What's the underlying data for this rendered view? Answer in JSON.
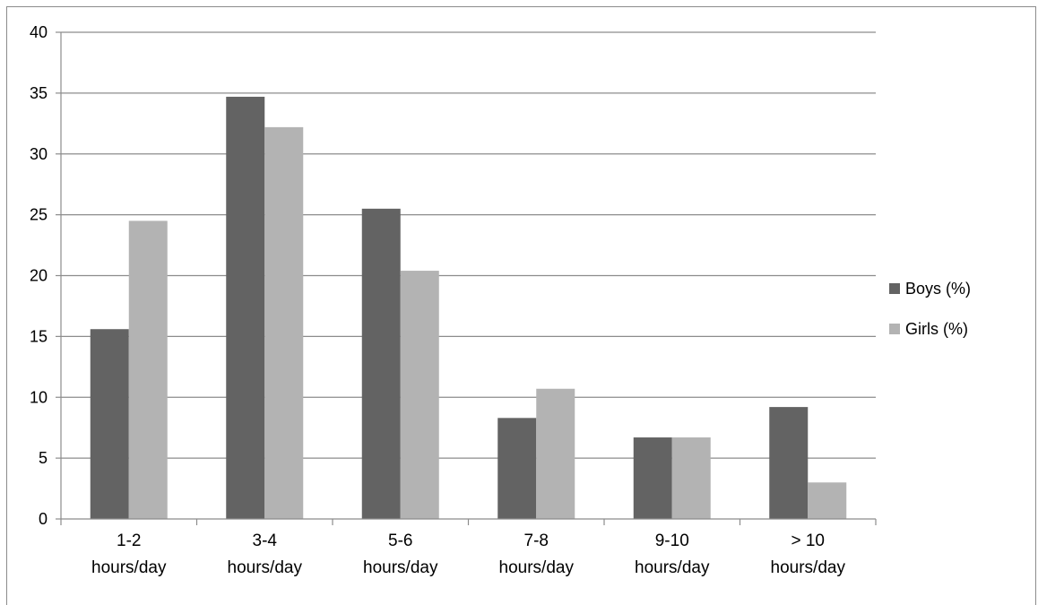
{
  "chart_data": {
    "type": "bar",
    "categories": [
      [
        "1-2",
        "hours/day"
      ],
      [
        "3-4",
        "hours/day"
      ],
      [
        "5-6",
        "hours/day"
      ],
      [
        "7-8",
        "hours/day"
      ],
      [
        "9-10",
        "hours/day"
      ],
      [
        "> 10",
        "hours/day"
      ]
    ],
    "series": [
      {
        "name": "Boys (%)",
        "color": "#636363",
        "values": [
          15.6,
          34.7,
          25.5,
          8.3,
          6.7,
          9.2
        ]
      },
      {
        "name": "Girls (%)",
        "color": "#b3b3b3",
        "values": [
          24.5,
          32.2,
          20.4,
          10.7,
          6.7,
          3.0
        ]
      }
    ],
    "ylim": [
      0,
      40
    ],
    "yticks": [
      "0",
      "5",
      "10",
      "15",
      "20",
      "25",
      "30",
      "35",
      "40"
    ],
    "grid": true,
    "legend": "right",
    "title": "",
    "xlabel": "",
    "ylabel": ""
  }
}
